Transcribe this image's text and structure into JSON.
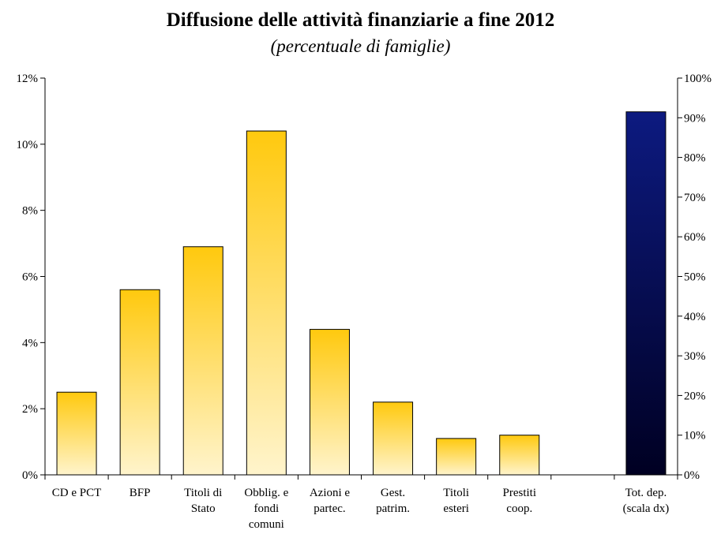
{
  "chart_data": {
    "type": "bar",
    "title": "Diffusione delle attività finanziarie a fine 2012",
    "subtitle": "(percentuale di famiglie)",
    "categories": [
      [
        "CD e PCT"
      ],
      [
        "BFP"
      ],
      [
        "Titoli di",
        "Stato"
      ],
      [
        "Obblig. e",
        "fondi",
        "comuni"
      ],
      [
        "Azioni e",
        "partec."
      ],
      [
        "Gest.",
        "patrim."
      ],
      [
        "Titoli",
        "esteri"
      ],
      [
        "Prestiti",
        "coop."
      ],
      [
        ""
      ],
      [
        "Tot. dep.",
        "(scala dx)"
      ]
    ],
    "series": [
      {
        "axis": "left",
        "values": [
          2.5,
          5.6,
          6.9,
          10.4,
          4.4,
          2.2,
          1.1,
          1.2,
          null,
          null
        ],
        "color_top": "#ffc90e",
        "color_bottom": "#fff4cc"
      },
      {
        "axis": "right",
        "values": [
          null,
          null,
          null,
          null,
          null,
          null,
          null,
          null,
          null,
          91.5
        ],
        "color_top": "#0d1a80",
        "color_bottom": "#000022"
      }
    ],
    "y_left": {
      "min": 0,
      "max": 12,
      "step": 2,
      "tick_labels": [
        "0%",
        "2%",
        "4%",
        "6%",
        "8%",
        "10%",
        "12%"
      ]
    },
    "y_right": {
      "min": 0,
      "max": 100,
      "step": 10,
      "tick_labels": [
        "0%",
        "10%",
        "20%",
        "30%",
        "40%",
        "50%",
        "60%",
        "70%",
        "80%",
        "90%",
        "100%"
      ]
    },
    "grid": false,
    "legend": "none"
  }
}
